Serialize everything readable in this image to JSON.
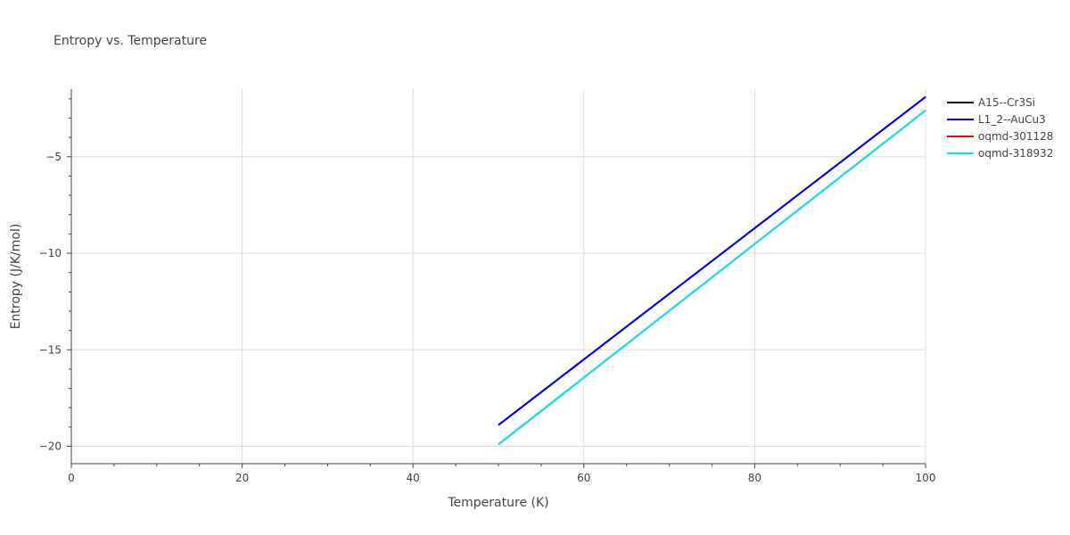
{
  "chart_data": {
    "type": "line",
    "title": "Entropy vs. Temperature",
    "xlabel": "Temperature (K)",
    "ylabel": "Entropy (J/K/mol)",
    "xlim": [
      0,
      100
    ],
    "ylim": [
      -20.9,
      -1.5
    ],
    "x_ticks": [
      0,
      20,
      40,
      60,
      80,
      100
    ],
    "x_tick_labels": [
      "0",
      "20",
      "40",
      "60",
      "80",
      "100"
    ],
    "y_ticks": [
      -20,
      -15,
      -10,
      -5
    ],
    "y_tick_labels": [
      "−20",
      "−15",
      "−10",
      "−5"
    ],
    "grid": true,
    "legend_position": "top-right",
    "series": [
      {
        "name": "A15--Cr3Si",
        "color": "#000000",
        "x": [
          50,
          100
        ],
        "y": [
          -18.9,
          -1.9
        ]
      },
      {
        "name": "L1_2--AuCu3",
        "color": "#0000ff",
        "x": [
          50,
          100
        ],
        "y": [
          -18.9,
          -1.9
        ]
      },
      {
        "name": "oqmd-301128",
        "color": "#ff0000",
        "x": [
          50,
          100
        ],
        "y": [
          -19.9,
          -2.6
        ]
      },
      {
        "name": "oqmd-318932",
        "color": "#00e5ff",
        "x": [
          50,
          100
        ],
        "y": [
          -19.9,
          -2.6
        ]
      }
    ]
  }
}
